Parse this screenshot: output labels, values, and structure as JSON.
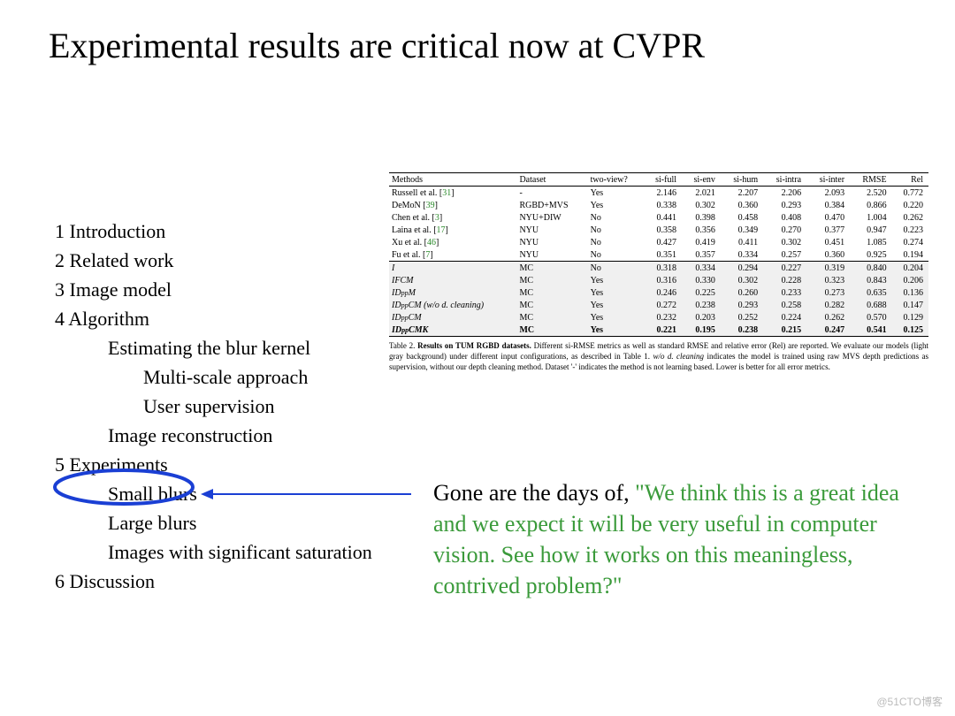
{
  "title": "Experimental results are critical now at CVPR",
  "outline": {
    "s1": "1 Introduction",
    "s2": "2 Related work",
    "s3": "3 Image model",
    "s4": "4 Algorithm",
    "s4a": "Estimating the blur kernel",
    "s4a1": "Multi-scale approach",
    "s4a2": "User supervision",
    "s4b": "Image reconstruction",
    "s5": "5 Experiments",
    "s5a": "Small blurs",
    "s5b": "Large blurs",
    "s5c": "Images with significant saturation",
    "s6": "6 Discussion"
  },
  "quote": {
    "black1": "Gone are the days of, ",
    "green1": "\"We think this is a great idea and we expect it will be very useful in computer vision.  See how it works on this meaningless, contrived problem?\""
  },
  "table": {
    "headers": [
      "Methods",
      "Dataset",
      "two-view?",
      "si-full",
      "si-env",
      "si-hum",
      "si-intra",
      "si-inter",
      "RMSE",
      "Rel"
    ],
    "sec1": [
      {
        "m": "Russell et al. [",
        "ref": "31",
        "m2": "]",
        "d": "-",
        "tv": "Yes",
        "v": [
          "2.146",
          "2.021",
          "2.207",
          "2.206",
          "2.093",
          "2.520",
          "0.772"
        ]
      },
      {
        "m": "DeMoN [",
        "ref": "39",
        "m2": "]",
        "d": "RGBD+MVS",
        "tv": "Yes",
        "v": [
          "0.338",
          "0.302",
          "0.360",
          "0.293",
          "0.384",
          "0.866",
          "0.220"
        ]
      },
      {
        "m": "Chen et al. [",
        "ref": "3",
        "m2": "]",
        "d": "NYU+DIW",
        "tv": "No",
        "v": [
          "0.441",
          "0.398",
          "0.458",
          "0.408",
          "0.470",
          "1.004",
          "0.262"
        ]
      },
      {
        "m": "Laina et al. [",
        "ref": "17",
        "m2": "]",
        "d": "NYU",
        "tv": "No",
        "v": [
          "0.358",
          "0.356",
          "0.349",
          "0.270",
          "0.377",
          "0.947",
          "0.223"
        ]
      },
      {
        "m": "Xu et al. [",
        "ref": "46",
        "m2": "]",
        "d": "NYU",
        "tv": "No",
        "v": [
          "0.427",
          "0.419",
          "0.411",
          "0.302",
          "0.451",
          "1.085",
          "0.274"
        ]
      },
      {
        "m": "Fu et al. [",
        "ref": "7",
        "m2": "]",
        "d": "NYU",
        "tv": "No",
        "v": [
          "0.351",
          "0.357",
          "0.334",
          "0.257",
          "0.360",
          "0.925",
          "0.194"
        ]
      }
    ],
    "sec2": [
      {
        "m": "I",
        "d": "MC",
        "tv": "No",
        "v": [
          "0.318",
          "0.334",
          "0.294",
          "0.227",
          "0.319",
          "0.840",
          "0.204"
        ]
      },
      {
        "m": "IFCM",
        "d": "MC",
        "tv": "Yes",
        "v": [
          "0.316",
          "0.330",
          "0.302",
          "0.228",
          "0.323",
          "0.843",
          "0.206"
        ]
      },
      {
        "m": "ID_ppM",
        "d": "MC",
        "tv": "Yes",
        "v": [
          "0.246",
          "0.225",
          "0.260",
          "0.233",
          "0.273",
          "0.635",
          "0.136"
        ]
      },
      {
        "m": "ID_ppCM (w/o d. cleaning)",
        "d": "MC",
        "tv": "Yes",
        "v": [
          "0.272",
          "0.238",
          "0.293",
          "0.258",
          "0.282",
          "0.688",
          "0.147"
        ]
      },
      {
        "m": "ID_ppCM",
        "d": "MC",
        "tv": "Yes",
        "v": [
          "0.232",
          "0.203",
          "0.252",
          "0.224",
          "0.262",
          "0.570",
          "0.129"
        ]
      },
      {
        "m": "ID_ppCMK",
        "d": "MC",
        "tv": "Yes",
        "v": [
          "0.221",
          "0.195",
          "0.238",
          "0.215",
          "0.247",
          "0.541",
          "0.125"
        ],
        "bold": true
      }
    ]
  },
  "caption": {
    "lead": "Table 2. ",
    "bold": "Results on TUM RGBD datasets.",
    "text1": " Different si-RMSE metrics as well as standard RMSE and relative error (Rel) are reported. We evaluate our models (light gray background) under different input configurations, as described in Table 1. ",
    "ital": "w/o d. cleaning",
    "text2": " indicates the model is trained using raw MVS depth predictions as supervision, without our depth cleaning method. Dataset '-' indicates the method is not learning based. Lower is better for all error metrics."
  },
  "watermark": "@51CTO博客",
  "colors": {
    "annot_blue": "#1a3fd4",
    "ref_green": "#2a8a2a",
    "quote_green": "#3a9a3a",
    "gray_bg": "#f0f0f0"
  }
}
